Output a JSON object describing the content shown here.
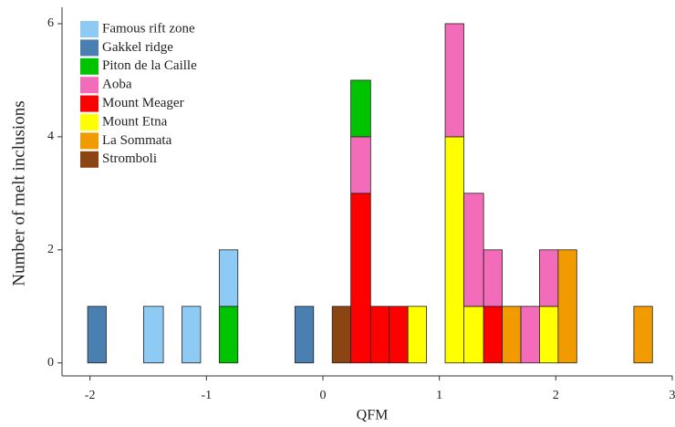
{
  "chart_data": {
    "type": "histogram",
    "x_label": "QFM",
    "y_label": "Number of melt inclusions",
    "bins": [
      -2.02,
      -1.86,
      -1.7,
      -1.54,
      -1.37,
      -1.21,
      -1.05,
      -0.89,
      -0.73,
      -0.56,
      -0.4,
      -0.24,
      -0.08,
      0.08,
      0.24,
      0.41,
      0.57,
      0.73,
      0.89,
      1.05,
      1.21,
      1.38,
      1.54,
      1.7,
      1.86,
      2.02,
      2.18,
      2.35,
      2.51,
      2.67,
      2.83
    ],
    "stacked": true,
    "stack_order": "reverse",
    "legend": "upper left",
    "series": [
      {
        "name": "Famous rift zone",
        "color": "#8ecbf4",
        "values": [
          0,
          0,
          0,
          1,
          0,
          1,
          0,
          1,
          0,
          0,
          0,
          0,
          0,
          0,
          0,
          0,
          0,
          0,
          0,
          0,
          0,
          0,
          0,
          0,
          0,
          0,
          0,
          0,
          0,
          0
        ]
      },
      {
        "name": "Gakkel ridge",
        "color": "#4a7fb2",
        "values": [
          1,
          0,
          0,
          0,
          0,
          0,
          0,
          0,
          0,
          0,
          0,
          1,
          0,
          0,
          0,
          0,
          0,
          0,
          0,
          0,
          0,
          0,
          0,
          0,
          0,
          0,
          0,
          0,
          0,
          0
        ]
      },
      {
        "name": "Piton de la Caille",
        "color": "#00c400",
        "values": [
          0,
          0,
          0,
          0,
          0,
          0,
          0,
          1,
          0,
          0,
          0,
          0,
          0,
          0,
          1,
          0,
          0,
          0,
          0,
          0,
          0,
          0,
          0,
          0,
          0,
          0,
          0,
          0,
          0,
          0
        ]
      },
      {
        "name": "Aoba",
        "color": "#f36cb9",
        "values": [
          0,
          0,
          0,
          0,
          0,
          0,
          0,
          0,
          0,
          0,
          0,
          0,
          0,
          0,
          1,
          0,
          0,
          0,
          0,
          2,
          2,
          1,
          0,
          1,
          1,
          0,
          0,
          0,
          0,
          0
        ]
      },
      {
        "name": "Mount Meager",
        "color": "#ff0000",
        "values": [
          0,
          0,
          0,
          0,
          0,
          0,
          0,
          0,
          0,
          0,
          0,
          0,
          0,
          0,
          3,
          1,
          1,
          0,
          0,
          0,
          0,
          1,
          0,
          0,
          0,
          0,
          0,
          0,
          0,
          0
        ]
      },
      {
        "name": "Mount Etna",
        "color": "#ffff00",
        "values": [
          0,
          0,
          0,
          0,
          0,
          0,
          0,
          0,
          0,
          0,
          0,
          0,
          0,
          0,
          0,
          0,
          0,
          1,
          0,
          4,
          1,
          0,
          0,
          0,
          1,
          0,
          0,
          0,
          0,
          0
        ]
      },
      {
        "name": "La Sommata",
        "color": "#f29b00",
        "values": [
          0,
          0,
          0,
          0,
          0,
          0,
          0,
          0,
          0,
          0,
          0,
          0,
          0,
          0,
          0,
          0,
          0,
          0,
          0,
          0,
          0,
          0,
          1,
          0,
          0,
          2,
          0,
          0,
          0,
          1
        ]
      },
      {
        "name": "Stromboli",
        "color": "#8b4513",
        "values": [
          0,
          0,
          0,
          0,
          0,
          0,
          0,
          0,
          0,
          0,
          0,
          0,
          0,
          1,
          0,
          0,
          0,
          0,
          0,
          0,
          0,
          0,
          0,
          0,
          0,
          0,
          0,
          0,
          0,
          0
        ]
      }
    ],
    "xlim": [
      -2.24,
      3.0
    ],
    "xticks": [
      -2,
      -1,
      0,
      1,
      2,
      3
    ],
    "ylim": [
      -0.23,
      6.29
    ],
    "yticks": [
      0,
      2,
      4,
      6
    ]
  }
}
